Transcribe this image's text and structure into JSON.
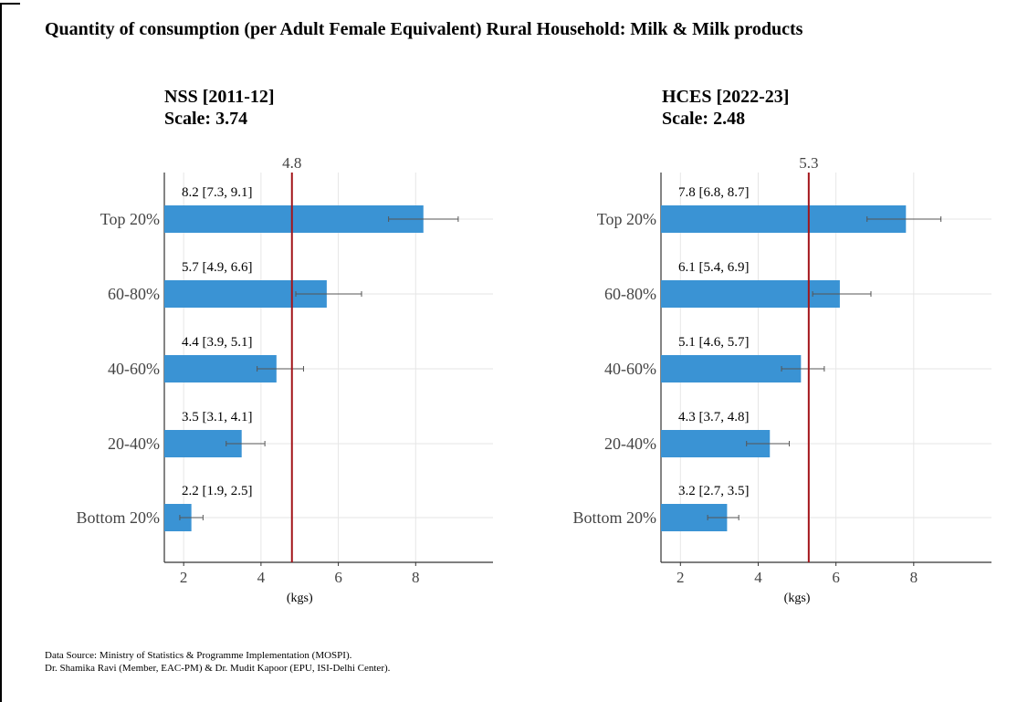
{
  "main_title": "Quantity of consumption (per Adult Female Equivalent) Rural Household: Milk & Milk products",
  "panels": [
    {
      "title": "NSS [2011-12]",
      "scale": "Scale: 3.74"
    },
    {
      "title": "HCES [2022-23]",
      "scale": "Scale: 2.48"
    }
  ],
  "footer": {
    "line1": "Data Source: Ministry of Statistics & Programme Implementation (MOSPI).",
    "line2": "Dr. Shamika Ravi (Member, EAC-PM) & Dr. Mudit Kapoor (EPU, ISI-Delhi Center)."
  },
  "colors": {
    "bar": "#3a93d4",
    "mean_line": "#a3141a",
    "error_bar": "#555555",
    "grid": "#e6e6e6"
  },
  "chart_data": [
    {
      "type": "bar",
      "orientation": "horizontal",
      "title": "NSS [2011-12]",
      "subtitle": "Scale: 3.74",
      "categories": [
        "Top 20%",
        "60-80%",
        "40-60%",
        "20-40%",
        "Bottom 20%"
      ],
      "values": [
        8.2,
        5.7,
        4.4,
        3.5,
        2.2
      ],
      "ci_low": [
        7.3,
        4.9,
        3.9,
        3.1,
        1.9
      ],
      "ci_high": [
        9.1,
        6.6,
        5.1,
        4.1,
        2.5
      ],
      "data_labels": [
        "8.2 [7.3, 9.1]",
        "5.7 [4.9, 6.6]",
        "4.4 [3.9, 5.1]",
        "3.5 [3.1, 4.1]",
        "2.2 [1.9, 2.5]"
      ],
      "reference_line": 4.8,
      "reference_label": "4.8",
      "xlabel": "(kgs)",
      "ylabel": "",
      "xlim": [
        1.5,
        10
      ],
      "xticks": [
        2,
        4,
        6,
        8
      ],
      "grid": true
    },
    {
      "type": "bar",
      "orientation": "horizontal",
      "title": "HCES [2022-23]",
      "subtitle": "Scale: 2.48",
      "categories": [
        "Top 20%",
        "60-80%",
        "40-60%",
        "20-40%",
        "Bottom 20%"
      ],
      "values": [
        7.8,
        6.1,
        5.1,
        4.3,
        3.2
      ],
      "ci_low": [
        6.8,
        5.4,
        4.6,
        3.7,
        2.7
      ],
      "ci_high": [
        8.7,
        6.9,
        5.7,
        4.8,
        3.5
      ],
      "data_labels": [
        "7.8 [6.8, 8.7]",
        "6.1 [5.4, 6.9]",
        "5.1 [4.6, 5.7]",
        "4.3 [3.7, 4.8]",
        "3.2 [2.7, 3.5]"
      ],
      "reference_line": 5.3,
      "reference_label": "5.3",
      "xlabel": "(kgs)",
      "ylabel": "",
      "xlim": [
        1.5,
        10
      ],
      "xticks": [
        2,
        4,
        6,
        8
      ],
      "grid": true
    }
  ]
}
